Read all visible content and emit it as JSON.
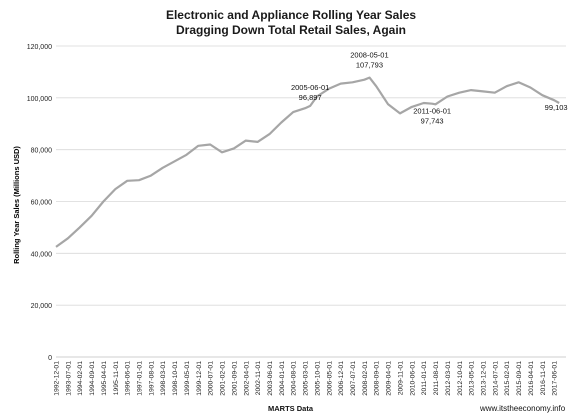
{
  "title": {
    "line1": "Electronic and Appliance Rolling Year Sales",
    "line2": "Dragging Down Total Retail Sales, Again"
  },
  "footer": {
    "source": "www.itstheeconomy.info"
  },
  "chart_data": {
    "type": "line",
    "xlabel": "MARTS Data",
    "ylabel": "Rolling Year Sales (Millions USD)",
    "ylim": [
      0,
      120000
    ],
    "yticks": [
      0,
      20000,
      40000,
      60000,
      80000,
      100000,
      120000
    ],
    "ytick_labels": [
      "0",
      "20,000",
      "40,000",
      "60,000",
      "80,000",
      "100,000",
      "120,000"
    ],
    "grid": "horizontal",
    "line_color": "#a6a6a6",
    "xtick_labels": [
      "1992-12-01",
      "1993-07-01",
      "1994-02-01",
      "1994-09-01",
      "1995-04-01",
      "1995-11-01",
      "1996-06-01",
      "1997-01-01",
      "1997-08-01",
      "1998-03-01",
      "1998-10-01",
      "1999-05-01",
      "1999-12-01",
      "2000-07-01",
      "2001-02-01",
      "2001-09-01",
      "2002-04-01",
      "2002-11-01",
      "2003-06-01",
      "2004-01-01",
      "2004-08-01",
      "2005-03-01",
      "2005-10-01",
      "2006-05-01",
      "2006-12-01",
      "2007-07-01",
      "2008-02-01",
      "2008-09-01",
      "2009-04-01",
      "2009-11-01",
      "2010-06-01",
      "2011-01-01",
      "2011-08-01",
      "2012-03-01",
      "2012-10-01",
      "2013-05-01",
      "2013-12-01",
      "2014-07-01",
      "2015-02-01",
      "2015-09-01",
      "2016-04-01",
      "2016-11-01",
      "2017-06-01"
    ],
    "series": [
      {
        "x": [
          "1992-12",
          "1993-07",
          "1994-02",
          "1994-09",
          "1995-04",
          "1995-11",
          "1996-06",
          "1997-01",
          "1997-08",
          "1998-03",
          "1998-10",
          "1999-05",
          "1999-12",
          "2000-07",
          "2001-02",
          "2001-09",
          "2002-04",
          "2002-11",
          "2003-06",
          "2004-01",
          "2004-08",
          "2005-03",
          "2005-06",
          "2005-10",
          "2006-05",
          "2006-12",
          "2007-07",
          "2008-02",
          "2008-05",
          "2008-09",
          "2009-04",
          "2009-11",
          "2010-06",
          "2011-01",
          "2011-06",
          "2011-08",
          "2012-03",
          "2012-10",
          "2013-05",
          "2013-12",
          "2014-07",
          "2015-02",
          "2015-09",
          "2016-04",
          "2016-11",
          "2017-06",
          "2017-09"
        ],
        "y": [
          42500,
          45800,
          50000,
          54500,
          60000,
          64800,
          68000,
          68200,
          70000,
          73000,
          75500,
          78000,
          81500,
          82000,
          79000,
          80500,
          83500,
          83000,
          86000,
          90500,
          94500,
          96000,
          96897,
          100500,
          103500,
          105500,
          106000,
          107000,
          107793,
          104500,
          97500,
          94000,
          96500,
          98000,
          97743,
          97500,
          100500,
          102000,
          103000,
          102500,
          102000,
          104500,
          106000,
          104000,
          101000,
          99103,
          98000
        ]
      }
    ],
    "annotations": [
      {
        "label": "2005-06-01",
        "value": "96,897",
        "x": "2005-06",
        "y": 96897
      },
      {
        "label": "2008-05-01",
        "value": "107,793",
        "x": "2008-05",
        "y": 107793
      },
      {
        "label": "2011-06-01",
        "value": "97,743",
        "x": "2011-06",
        "y": 97743
      },
      {
        "label": "",
        "value": "99,103",
        "x": "2017-06",
        "y": 99103
      }
    ]
  }
}
